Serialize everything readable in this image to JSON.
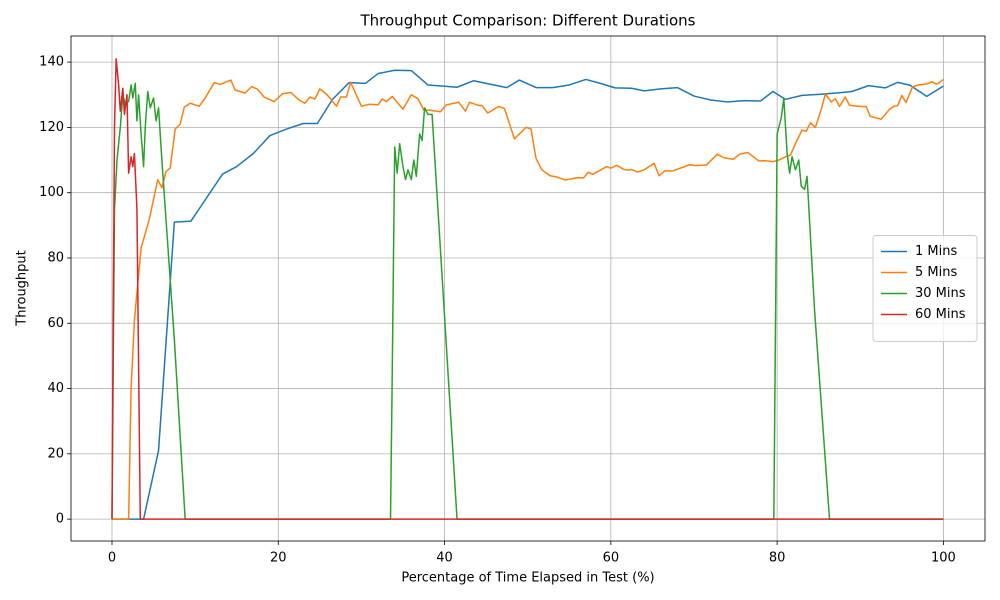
{
  "chart_data": {
    "type": "line",
    "title": "Throughput Comparison: Different Durations",
    "xlabel": "Percentage of Time Elapsed in Test (%)",
    "ylabel": "Throughput",
    "xlim": [
      -4.93,
      105
    ],
    "ylim": [
      -6.7,
      148
    ],
    "xticks": [
      0,
      20,
      40,
      60,
      80,
      100
    ],
    "yticks": [
      0,
      20,
      40,
      60,
      80,
      100,
      120,
      140
    ],
    "grid": true,
    "legend": "center right",
    "series": [
      {
        "name": "1 Mins",
        "color": "#1f77b4",
        "x": [
          0,
          3.8,
          5.6,
          7.5,
          9.5,
          11,
          13.3,
          15,
          17,
          19,
          21,
          23,
          24.7,
          26.5,
          28.5,
          30.5,
          32,
          34,
          36,
          38,
          40,
          41.5,
          43.5,
          45,
          47.5,
          49,
          51,
          53,
          55,
          57,
          59,
          60.5,
          62.5,
          64,
          66,
          68,
          70,
          72,
          74,
          76,
          78,
          79.5,
          81,
          83,
          85,
          87,
          89,
          91,
          93,
          94.5,
          96,
          98,
          100
        ],
        "values": [
          0,
          0,
          21,
          91,
          91.3,
          97,
          105.7,
          108,
          112,
          117.5,
          119.5,
          121.2,
          121.2,
          128.5,
          133.7,
          133.5,
          136.5,
          137.5,
          137.4,
          133,
          132.6,
          132.3,
          134.3,
          133.5,
          132.2,
          134.5,
          132.2,
          132.2,
          133,
          134.7,
          133.3,
          132.1,
          132,
          131.2,
          131.8,
          132.2,
          129.6,
          128.4,
          127.8,
          128.2,
          128.1,
          131,
          128.6,
          129.8,
          130.1,
          130.5,
          131,
          132.8,
          132.1,
          133.8,
          132.9,
          129.5,
          132.7
        ]
      },
      {
        "name": "5 Mins",
        "color": "#ff7f0e",
        "x": [
          0,
          2,
          2.3,
          2.7,
          3.5,
          4.5,
          5.5,
          6,
          6.5,
          7,
          7.6,
          8.2,
          8.7,
          9.4,
          10.5,
          11.2,
          12.3,
          13,
          14.3,
          14.8,
          16,
          16.8,
          17.5,
          18.3,
          19.5,
          20.5,
          21.5,
          22.5,
          23.2,
          23.8,
          24.4,
          25,
          25.8,
          27,
          27.5,
          28.2,
          28.7,
          30,
          31,
          32,
          32.5,
          33,
          33.7,
          35,
          36,
          36.8,
          37.5,
          38.2,
          39.5,
          40.2,
          41.7,
          42.5,
          43,
          44,
          44.5,
          45.2,
          46.5,
          47.2,
          48.4,
          49.8,
          50.4,
          51,
          51.7,
          52.7,
          53.5,
          54.5,
          56,
          56.7,
          57.3,
          57.8,
          59.5,
          60,
          60.7,
          61.5,
          62,
          62.5,
          63.2,
          64,
          65.2,
          65.8,
          66.5,
          67.5,
          69.5,
          70.2,
          71.5,
          72.8,
          73.5,
          74.7,
          75.5,
          76.5,
          77.8,
          78.5,
          79.5,
          80.2,
          81,
          81.6,
          82.2,
          83,
          83.5,
          84,
          84.6,
          85.3,
          85.8,
          86.5,
          87,
          87.5,
          88.2,
          88.7,
          90,
          90.7,
          91.2,
          92.5,
          93.5,
          94,
          94.5,
          95,
          95.5,
          96.3,
          97,
          98,
          98.6,
          99.2,
          100
        ],
        "values": [
          0,
          0,
          40,
          61,
          83,
          92,
          104,
          101.5,
          106.5,
          107.5,
          119.5,
          121,
          126.2,
          127.4,
          126.5,
          129,
          133.7,
          133.2,
          134.5,
          131.5,
          130.5,
          132.5,
          131.7,
          129.3,
          127.9,
          130.3,
          130.7,
          128.4,
          127.4,
          129.3,
          128.7,
          131.8,
          130.2,
          126.5,
          129.3,
          129.3,
          133.8,
          126.5,
          127.1,
          126.9,
          128.7,
          127.9,
          129.5,
          125.6,
          130,
          128.8,
          125.3,
          125.3,
          124.8,
          126.9,
          127.7,
          125,
          127.7,
          126.8,
          126.7,
          124.4,
          126.4,
          125.8,
          116.5,
          120,
          119.5,
          110.5,
          107,
          105.2,
          104.8,
          103.9,
          104.6,
          104.5,
          106.3,
          105.6,
          108,
          107.5,
          108.4,
          107.2,
          106.9,
          107.1,
          106.3,
          107,
          109,
          105.2,
          106.7,
          106.7,
          108.6,
          108.3,
          108.5,
          111.8,
          110.8,
          110.2,
          111.8,
          112.3,
          109.7,
          109.8,
          109.5,
          110,
          111,
          111.5,
          115,
          119.2,
          118.8,
          121.4,
          120,
          125.5,
          130.2,
          127.8,
          128.8,
          126.4,
          129.3,
          126.8,
          126.4,
          126.4,
          123.4,
          122.5,
          125.5,
          126.4,
          126.7,
          129.8,
          127.6,
          132.5,
          133,
          133.3,
          134,
          133.2,
          134.7
        ]
      },
      {
        "name": "30 Mins",
        "color": "#2ca02c",
        "x": [
          0,
          0.3,
          0.6,
          1,
          1.3,
          1.6,
          2,
          2.3,
          2.5,
          2.8,
          3,
          3.2,
          3.5,
          3.8,
          4,
          4.3,
          4.6,
          5,
          5.3,
          5.6,
          6,
          7.5,
          8.8,
          33.5,
          33.7,
          34,
          34.3,
          34.6,
          35,
          35.3,
          35.6,
          36,
          36.3,
          36.6,
          37,
          37.3,
          37.6,
          38,
          38.5,
          41.5,
          79.6,
          80,
          80.5,
          80.8,
          81.2,
          81.5,
          81.8,
          82.2,
          82.6,
          82.9,
          83.3,
          83.6,
          84.5,
          86.3,
          100
        ],
        "values": [
          0,
          95,
          110,
          120,
          130,
          127,
          128,
          133,
          129,
          133.5,
          122,
          130,
          118,
          108,
          120,
          131,
          126,
          129,
          122,
          126,
          110,
          55,
          0,
          0,
          43,
          114,
          106,
          115,
          108,
          104,
          107,
          104,
          110,
          105,
          118,
          116,
          126,
          124,
          124,
          0,
          0,
          118,
          123,
          129,
          112,
          106,
          111,
          107,
          110,
          102,
          101,
          105,
          64,
          0,
          0
        ]
      },
      {
        "name": "60 Mins",
        "color": "#d62728",
        "x": [
          0,
          0.3,
          0.5,
          0.8,
          1,
          1.3,
          1.5,
          1.8,
          2,
          2.3,
          2.5,
          2.7,
          3,
          3.4,
          100
        ],
        "values": [
          0,
          120,
          141,
          133,
          125,
          132,
          124,
          130,
          106,
          111,
          108,
          112,
          95,
          0,
          0
        ]
      }
    ]
  }
}
